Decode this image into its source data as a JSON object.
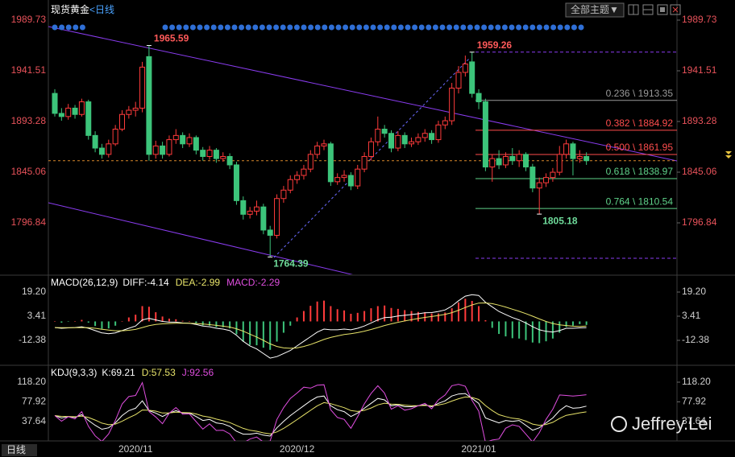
{
  "header": {
    "title": "现货黄金",
    "period": "<日线",
    "theme_button": "全部主题▼"
  },
  "footer": {
    "period": "日线"
  },
  "watermark": "Jeffrey.Lei",
  "chart_data": [
    {
      "type": "candlestick",
      "categories": [
        null,
        null,
        null,
        null,
        null,
        null,
        null,
        null,
        null,
        null,
        null,
        null,
        "2020/11",
        null,
        null,
        null,
        null,
        null,
        null,
        null,
        null,
        null,
        null,
        null,
        null,
        null,
        null,
        null,
        null,
        null,
        null,
        null,
        null,
        null,
        null,
        null,
        "2020/12",
        null,
        null,
        null,
        null,
        null,
        null,
        null,
        null,
        null,
        null,
        null,
        null,
        null,
        null,
        null,
        null,
        null,
        null,
        null,
        null,
        null,
        null,
        null,
        null,
        null,
        null,
        "2021/01",
        null,
        null,
        null,
        null,
        null,
        null,
        null,
        null,
        null,
        null,
        null,
        null,
        null,
        null,
        null,
        null
      ],
      "open": [
        1920,
        1901,
        1898,
        1906,
        1900,
        1912,
        1880,
        1868,
        1862,
        1872,
        1886,
        1900,
        1904,
        1906,
        1955,
        1862,
        1870,
        1862,
        1876,
        1880,
        1872,
        1878,
        1866,
        1860,
        1866,
        1858,
        1860,
        1852,
        1818,
        1805,
        1808,
        1812,
        1790,
        1785,
        1820,
        1828,
        1838,
        1842,
        1848,
        1862,
        1870,
        1872,
        1836,
        1840,
        1842,
        1832,
        1848,
        1860,
        1874,
        1886,
        1882,
        1868,
        1880,
        1872,
        1874,
        1878,
        1882,
        1876,
        1890,
        1894,
        1925,
        1940,
        1950,
        1920,
        1912,
        1850,
        1858,
        1852,
        1860,
        1856,
        1862,
        1850,
        1830,
        1835,
        1840,
        1845,
        1862,
        1872,
        1858,
        1860
      ],
      "high": [
        1924,
        1906,
        1910,
        1909,
        1915,
        1914,
        1884,
        1872,
        1876,
        1890,
        1904,
        1908,
        1912,
        1950,
        1965.59,
        1875,
        1874,
        1880,
        1886,
        1883,
        1882,
        1880,
        1869,
        1870,
        1868,
        1864,
        1863,
        1855,
        1822,
        1812,
        1818,
        1815,
        1794,
        1824,
        1832,
        1842,
        1846,
        1852,
        1866,
        1874,
        1876,
        1874,
        1844,
        1847,
        1845,
        1852,
        1864,
        1878,
        1898,
        1890,
        1885,
        1884,
        1883,
        1878,
        1882,
        1886,
        1885,
        1894,
        1898,
        1930,
        1946,
        1956,
        1959.26,
        1924,
        1915,
        1862,
        1866,
        1864,
        1868,
        1866,
        1864,
        1853,
        1840,
        1844,
        1849,
        1870,
        1876,
        1874,
        1866,
        1864
      ],
      "low": [
        1898,
        1894,
        1895,
        1896,
        1898,
        1876,
        1864,
        1858,
        1859,
        1870,
        1884,
        1896,
        1898,
        1902,
        1856,
        1858,
        1858,
        1860,
        1872,
        1868,
        1869,
        1862,
        1856,
        1857,
        1854,
        1855,
        1848,
        1814,
        1800,
        1801,
        1804,
        1786,
        1764.39,
        1782,
        1816,
        1825,
        1834,
        1838,
        1845,
        1858,
        1866,
        1832,
        1833,
        1836,
        1828,
        1829,
        1845,
        1856,
        1870,
        1878,
        1864,
        1865,
        1868,
        1869,
        1871,
        1874,
        1872,
        1873,
        1886,
        1890,
        1920,
        1936,
        1916,
        1905,
        1846,
        1836,
        1848,
        1849,
        1852,
        1850,
        1846,
        1826,
        1805.18,
        1831,
        1836,
        1842,
        1858,
        1842,
        1854,
        1852
      ],
      "close": [
        1901,
        1898,
        1906,
        1900,
        1912,
        1880,
        1868,
        1862,
        1872,
        1886,
        1900,
        1904,
        1906,
        1945,
        1862,
        1870,
        1862,
        1876,
        1880,
        1872,
        1878,
        1866,
        1860,
        1866,
        1858,
        1860,
        1852,
        1818,
        1805,
        1808,
        1812,
        1790,
        1785,
        1820,
        1828,
        1838,
        1842,
        1848,
        1862,
        1870,
        1872,
        1836,
        1840,
        1842,
        1832,
        1848,
        1860,
        1874,
        1886,
        1882,
        1868,
        1880,
        1872,
        1874,
        1878,
        1882,
        1876,
        1890,
        1894,
        1925,
        1940,
        1948,
        1920,
        1912,
        1850,
        1858,
        1852,
        1860,
        1856,
        1862,
        1850,
        1830,
        1835,
        1840,
        1845,
        1862,
        1872,
        1858,
        1860,
        1856
      ],
      "up_color": "#ff3b3b",
      "down_color": "#3cc47a",
      "ylim": [
        1748.62,
        1999.68
      ],
      "yticks": [
        1796.84,
        1845.06,
        1893.28,
        1941.51,
        1989.73
      ],
      "high_labels": [
        1965.59,
        1959.26
      ],
      "low_labels": [
        1764.39,
        1805.18
      ],
      "levels": [
        {
          "value": 1913.35,
          "label": "0.236 \\ 1913.35",
          "color": "#9a9a9a"
        },
        {
          "value": 1884.92,
          "label": "0.382 \\ 1884.92",
          "color": "#ff4d4d"
        },
        {
          "value": 1861.95,
          "label": "0.500 \\ 1861.95",
          "color": "#ff4d4d"
        },
        {
          "value": 1838.97,
          "label": "0.618 \\ 1838.97",
          "color": "#5fd38a"
        },
        {
          "value": 1810.54,
          "label": "0.764 \\ 1810.54",
          "color": "#5fd38a"
        }
      ],
      "guides": [
        1959.26,
        1763.2
      ]
    },
    {
      "type": "macd",
      "title": "MACD(26,12,9)",
      "up_color": "#ff3b3b",
      "down_color": "#3cc47a",
      "series": [
        {
          "name": "DIFF:-4.14",
          "color": "#ffffff",
          "values": [
            -4,
            -4.5,
            -4.2,
            -4,
            -3.5,
            -4.5,
            -6,
            -7.5,
            -8,
            -7.5,
            -6,
            -4.5,
            -3,
            1,
            2,
            1,
            0,
            -0.5,
            -0.5,
            -1,
            -1.2,
            -2,
            -3,
            -3.5,
            -4.5,
            -5,
            -6,
            -9,
            -13,
            -16,
            -18,
            -21,
            -24,
            -23,
            -21,
            -19,
            -16,
            -13,
            -10,
            -7,
            -5,
            -5.5,
            -5.5,
            -5,
            -5.5,
            -4.5,
            -3,
            -1,
            1,
            2.5,
            2.8,
            3.5,
            4,
            4.5,
            5,
            5.6,
            5.8,
            6.5,
            7.5,
            10,
            13.5,
            16.5,
            17.5,
            17,
            12.5,
            9.5,
            6.5,
            4.5,
            2.5,
            1,
            -1,
            -3.5,
            -5.5,
            -6.5,
            -7,
            -6,
            -4.5,
            -4.5,
            -4.2,
            -4.14
          ]
        },
        {
          "name": "DEA:-2.99",
          "color": "#e8e46a",
          "values": [
            -4,
            -4.1,
            -4.1,
            -4.1,
            -4,
            -4.1,
            -4.5,
            -5.1,
            -5.7,
            -6.1,
            -6.1,
            -5.8,
            -5.2,
            -4,
            -2.8,
            -2,
            -1.6,
            -1.4,
            -1.2,
            -1.2,
            -1.2,
            -1.4,
            -1.7,
            -2.1,
            -2.6,
            -3.1,
            -3.7,
            -4.8,
            -6.4,
            -8.3,
            -10.2,
            -12.4,
            -14.7,
            -16.4,
            -17.3,
            -17.6,
            -17.3,
            -16.4,
            -15.1,
            -13.5,
            -11.8,
            -10.5,
            -9.5,
            -8.6,
            -8,
            -7.3,
            -6.4,
            -5.3,
            -4,
            -2.7,
            -1.6,
            -0.6,
            0.3,
            1.1,
            1.9,
            2.6,
            3.2,
            3.9,
            4.6,
            5.7,
            7.3,
            9.1,
            10.8,
            12,
            12.1,
            11.6,
            10.6,
            9.4,
            8,
            6.6,
            5.1,
            3.4,
            1.6,
            0,
            -1.4,
            -2.3,
            -2.7,
            -3.1,
            -3.3,
            -2.99
          ]
        },
        {
          "name": "MACD:-2.29",
          "color": "#e04ee0",
          "kind": "bar",
          "values": [
            0,
            -0.8,
            -0.2,
            0.2,
            1,
            -0.8,
            -3,
            -4.8,
            -4.6,
            -2.8,
            0.2,
            2.6,
            4.4,
            10,
            9.6,
            6,
            3.2,
            1.8,
            1.4,
            0.4,
            0,
            -1.2,
            -2.6,
            -2.8,
            -3.8,
            -3.8,
            -4.6,
            -8.4,
            -13.2,
            -15.4,
            -15.6,
            -17.2,
            -18.6,
            -13.2,
            -7.4,
            -2.8,
            2.6,
            6.8,
            10.2,
            13,
            13.6,
            10,
            8,
            7.2,
            5,
            5.6,
            6.8,
            8.6,
            10,
            10.4,
            8.8,
            8.2,
            7.4,
            6.8,
            6.2,
            6,
            5.2,
            5.2,
            5.8,
            8.6,
            12.4,
            14.8,
            13.4,
            10,
            0.8,
            -4.2,
            -8.2,
            -9.8,
            -11,
            -11.2,
            -12.2,
            -13.8,
            -14.2,
            -13,
            -11.2,
            -7.4,
            -3.6,
            -2.8,
            -1.8,
            -2.29
          ]
        }
      ],
      "ylim": [
        -27.64,
        28.67
      ],
      "yticks": [
        -12.38,
        3.41,
        {
          "value": 19.2,
          "label": "19.20"
        }
      ]
    },
    {
      "type": "kdj",
      "title": "KDJ(9,3,3)",
      "series": [
        {
          "name": "K:69.21",
          "color": "#ffffff",
          "values": [
            50,
            45,
            48,
            46,
            52,
            40,
            30,
            22,
            25,
            35,
            50,
            60,
            65,
            80,
            60,
            55,
            48,
            55,
            60,
            55,
            55,
            48,
            40,
            42,
            35,
            33,
            28,
            18,
            12,
            12,
            14,
            10,
            8,
            25,
            38,
            50,
            60,
            70,
            80,
            88,
            90,
            70,
            62,
            58,
            48,
            55,
            65,
            75,
            85,
            82,
            70,
            72,
            68,
            68,
            70,
            72,
            68,
            75,
            80,
            90,
            94,
            95,
            85,
            75,
            45,
            40,
            35,
            40,
            38,
            40,
            30,
            20,
            25,
            35,
            45,
            60,
            70,
            65,
            66,
            69.21
          ]
        },
        {
          "name": "D:57.53",
          "color": "#e8e46a",
          "values": [
            50,
            48.3,
            48.2,
            47.5,
            49,
            46,
            40.7,
            34.5,
            31.3,
            32.5,
            38.3,
            45.6,
            52,
            61.3,
            60.9,
            59,
            55.3,
            55.2,
            56.8,
            56.2,
            55.8,
            53.3,
            48.9,
            46.6,
            42.7,
            39.5,
            35.7,
            29.8,
            23.9,
            19.9,
            17.9,
            14.6,
            12.4,
            16.6,
            23.7,
            32.5,
            41.7,
            51.1,
            60.7,
            69.8,
            76.5,
            74.3,
            70.2,
            66.1,
            60.1,
            58.4,
            60.6,
            65.4,
            71.9,
            75.3,
            73.5,
            73,
            71.3,
            70.2,
            70.1,
            70.7,
            69.8,
            71.5,
            74.3,
            79.5,
            84.4,
            87.9,
            86.9,
            82.9,
            70.3,
            60.2,
            51.8,
            47.9,
            44.6,
            43.1,
            38.7,
            32.5,
            30,
            31.7,
            36.1,
            44.1,
            50.5,
            53,
            55.5,
            57.53
          ]
        },
        {
          "name": "J:92.56",
          "color": "#e04ee0",
          "values": [
            50,
            38.4,
            47.6,
            43,
            58,
            28,
            8.6,
            -3,
            12.4,
            40,
            73.4,
            88.8,
            91,
            117.4,
            58.2,
            47,
            33.4,
            54.6,
            66.4,
            52.6,
            53.4,
            37.6,
            22.4,
            33,
            19.6,
            20,
            12.6,
            -5.6,
            -6,
            2,
            6,
            -4,
            -2,
            42,
            66,
            85,
            96,
            108,
            106,
            112,
            113,
            62,
            46,
            42,
            24,
            48,
            74,
            95,
            111,
            96,
            63,
            70,
            61,
            64,
            70,
            75,
            64,
            82,
            92,
            111,
            114,
            110,
            81,
            59,
            -5,
            0,
            2,
            24,
            31,
            28,
            12,
            -4,
            15,
            42,
            63,
            92,
            91,
            90,
            91,
            92.56
          ]
        }
      ],
      "ylim": [
        -8.4,
        146.15
      ],
      "yticks": [
        37.64,
        77.92,
        {
          "value": 118.2,
          "label": "118.20"
        }
      ]
    }
  ]
}
